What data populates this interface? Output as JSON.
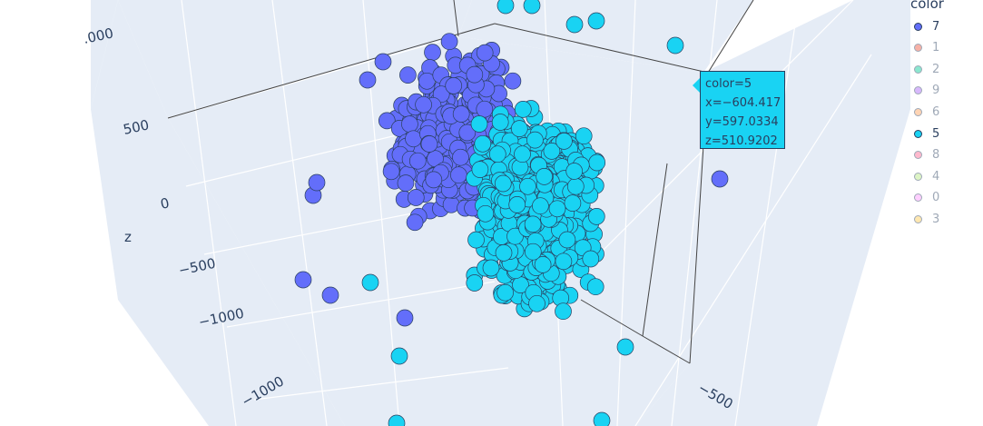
{
  "chart_data": {
    "type": "scatter",
    "subtype": "3d",
    "axes": {
      "z": {
        "title": "z",
        "tick_labels": [
          ".000",
          "500",
          "0",
          "−500",
          "−1000"
        ]
      },
      "x": {
        "tick_labels": [
          "−1000"
        ]
      },
      "y": {
        "tick_labels": [
          "−500"
        ]
      }
    },
    "legend": {
      "title": "color",
      "placement": "top-right",
      "items": [
        {
          "label": "7",
          "color": "#636efa",
          "visible": true
        },
        {
          "label": "1",
          "color": "#EF553B",
          "visible": false
        },
        {
          "label": "2",
          "color": "#00cc96",
          "visible": false
        },
        {
          "label": "9",
          "color": "#ab63fa",
          "visible": false
        },
        {
          "label": "6",
          "color": "#FFA15A",
          "visible": false
        },
        {
          "label": "5",
          "color": "#19d3f3",
          "visible": true
        },
        {
          "label": "8",
          "color": "#FF6692",
          "visible": false
        },
        {
          "label": "4",
          "color": "#B6E880",
          "visible": false
        },
        {
          "label": "0",
          "color": "#FF97FF",
          "visible": false
        },
        {
          "label": "3",
          "color": "#FECB52",
          "visible": false
        }
      ]
    },
    "series": [
      {
        "name": "7",
        "color": "#636efa"
      },
      {
        "name": "5",
        "color": "#19d3f3"
      }
    ],
    "hover": {
      "lines": [
        "color=5",
        "x=−604.417",
        "y=597.0334",
        "z=510.9202"
      ],
      "color": "#19d3f3"
    },
    "grid": true,
    "background": "#e5ecf6"
  }
}
